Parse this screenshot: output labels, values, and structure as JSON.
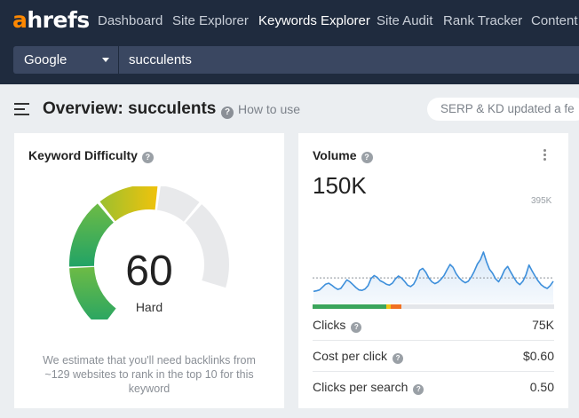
{
  "nav": {
    "logo_accent": "a",
    "logo_rest": "hrefs",
    "items": [
      "Dashboard",
      "Site Explorer",
      "Keywords Explorer",
      "Site Audit",
      "Rank Tracker",
      "Content"
    ],
    "active_index": 2
  },
  "search": {
    "engine": "Google",
    "keyword": "succulents"
  },
  "header": {
    "title": "Overview: succulents",
    "how_to_use": "How to use",
    "update_notice": "SERP & KD updated a fe"
  },
  "kd": {
    "title": "Keyword Difficulty",
    "value": "60",
    "label": "Hard",
    "note": "We estimate that you'll need backlinks from ~129 websites to rank in the top 10 for this keyword"
  },
  "volume": {
    "title": "Volume",
    "value": "150K",
    "ymax_label": "395K",
    "trend": [
      18,
      19,
      21,
      27,
      33,
      35,
      31,
      26,
      22,
      24,
      33,
      42,
      38,
      32,
      26,
      21,
      20,
      23,
      30,
      45,
      51,
      47,
      40,
      37,
      33,
      31,
      35,
      44,
      50,
      46,
      39,
      31,
      28,
      33,
      45,
      62,
      66,
      58,
      46,
      38,
      34,
      37,
      43,
      51,
      63,
      74,
      68,
      55,
      46,
      40,
      36,
      39,
      48,
      60,
      75,
      84,
      100,
      80,
      64,
      56,
      44,
      38,
      49,
      63,
      70,
      58,
      47,
      37,
      32,
      39,
      52,
      73,
      61,
      50,
      40,
      32,
      27,
      24,
      30,
      39
    ],
    "average_line": 46,
    "clicks_bar": {
      "organic_pct": 30.5,
      "paid_yellow_pct": 1.8,
      "paid_orange_pct": 4.4
    },
    "metrics": [
      {
        "label": "Clicks",
        "value": "75K"
      },
      {
        "label": "Cost per click",
        "value": "$0.60"
      },
      {
        "label": "Clicks per search",
        "value": "0.50"
      }
    ]
  },
  "colors": {
    "nav_bg": "#1f2b3e",
    "input_bg": "#3a4761",
    "accent_orange": "#ff8800",
    "trend_line": "#3d8fdb",
    "gauge_green_dark": "#21a366",
    "gauge_green": "#5fb84a",
    "gauge_yellow_start": "#9cc02e",
    "gauge_yellow_end": "#f0c20c",
    "gauge_empty": "#e8e9eb"
  }
}
